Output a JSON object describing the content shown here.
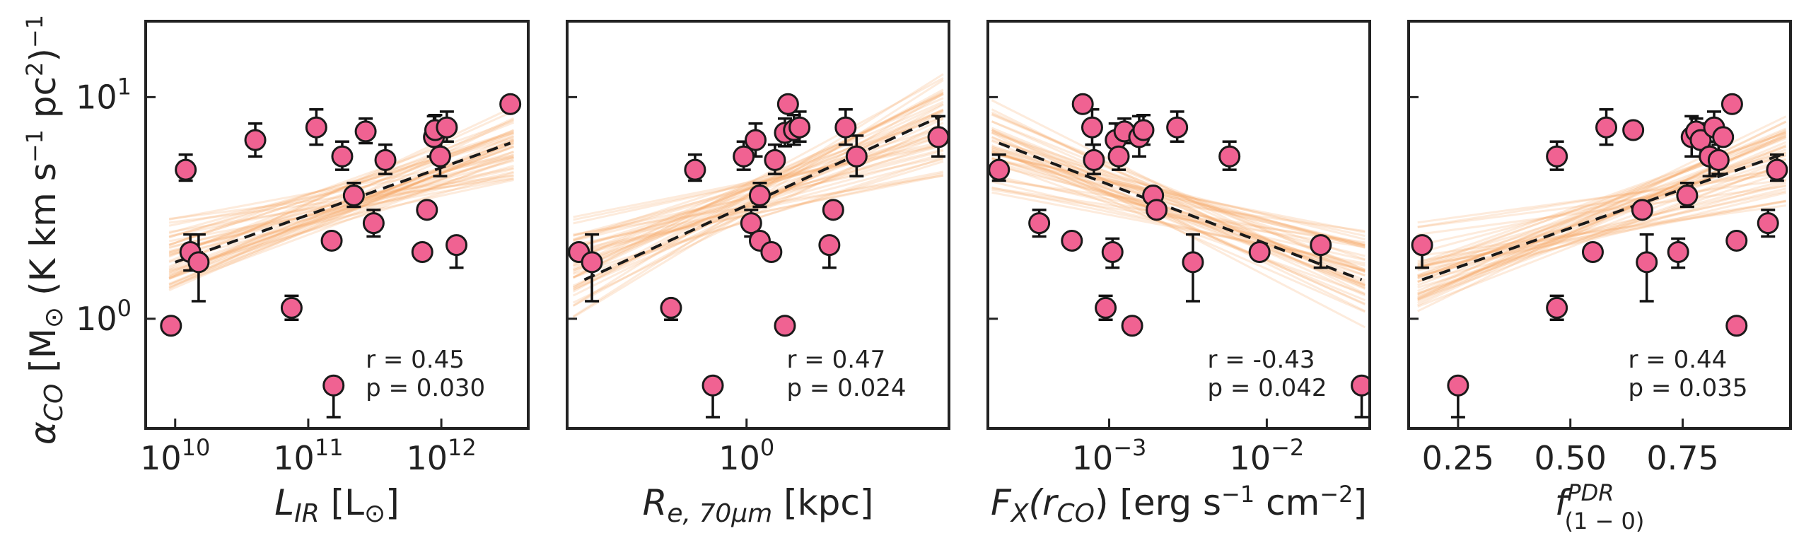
{
  "figure": {
    "ylabel": "α_CO [M⊙ (K km s⁻¹ pc²)⁻¹]",
    "ylabel_parts": {
      "main": "α",
      "sub": "CO",
      "rest": " [M",
      "sun": "⊙",
      "unit1": " (K km s",
      "e1": "−1",
      "unit2": " pc",
      "e2": "2",
      "unit3": ")",
      "e3": "−1"
    },
    "colors": {
      "points": "#f06292",
      "point_edge": "#1a1a1a",
      "fit_line": "#1a1a1a",
      "samples": "#f4a460",
      "errorbar": "#111111"
    }
  },
  "chart_data": [
    {
      "type": "scatter",
      "title": "",
      "xlabel": "L_IR [L⊙]",
      "xlabel_parts": {
        "main": "L",
        "sub": "IR",
        "rest": " [L",
        "sun": "⊙",
        "close": "]"
      },
      "ylabel": "α_CO [M⊙ (K km s⁻¹ pc²)⁻¹]",
      "xscale": "log",
      "yscale": "log",
      "xlim": [
        6000000000.0,
        4500000000000.0
      ],
      "ylim": [
        0.32,
        22
      ],
      "xticks": [
        {
          "value": 10000000000.0,
          "label": "10",
          "exp": "10"
        },
        {
          "value": 100000000000.0,
          "label": "10",
          "exp": "11"
        },
        {
          "value": 1000000000000.0,
          "label": "10",
          "exp": "12"
        }
      ],
      "yticks": [
        {
          "value": 1,
          "label": "10",
          "exp": "0"
        },
        {
          "value": 10,
          "label": "10",
          "exp": "1"
        }
      ],
      "annotation": {
        "r": "r = 0.45",
        "p": "p = 0.030",
        "position": "bottom-right"
      },
      "fit": {
        "x": [
          10000000000.0,
          3300000000000.0
        ],
        "y": [
          1.8,
          6.2
        ]
      },
      "samples": {
        "x": [
          9000000000.0,
          3500000000000.0
        ],
        "y_center_start": 1.8,
        "y_center_end": 6.2,
        "count": 45
      },
      "points": [
        {
          "x": 9300000000.0,
          "y": 0.93,
          "err_up": 0,
          "err_down": 0
        },
        {
          "x": 12000000000.0,
          "y": 4.7,
          "err_up": 0.8,
          "err_down": 0.5
        },
        {
          "x": 13000000000.0,
          "y": 2.0,
          "err_up": 0.4,
          "err_down": 0.35
        },
        {
          "x": 15000000000.0,
          "y": 1.8,
          "err_up": 0.6,
          "err_down": 0.6
        },
        {
          "x": 40000000000.0,
          "y": 6.4,
          "err_up": 1.2,
          "err_down": 1.0
        },
        {
          "x": 75000000000.0,
          "y": 1.12,
          "err_up": 0.15,
          "err_down": 0.13
        },
        {
          "x": 115000000000.0,
          "y": 7.3,
          "err_up": 1.5,
          "err_down": 1.2
        },
        {
          "x": 150000000000.0,
          "y": 2.25,
          "err_up": 0,
          "err_down": 0
        },
        {
          "x": 155000000000.0,
          "y": 0.5,
          "err_up": 0,
          "err_down": 0.14
        },
        {
          "x": 180000000000.0,
          "y": 5.4,
          "err_up": 0.9,
          "err_down": 0.7
        },
        {
          "x": 220000000000.0,
          "y": 3.6,
          "err_up": 0.5,
          "err_down": 0.4
        },
        {
          "x": 270000000000.0,
          "y": 7.0,
          "err_up": 1.0,
          "err_down": 0.8
        },
        {
          "x": 310000000000.0,
          "y": 2.7,
          "err_up": 0.4,
          "err_down": 0.35
        },
        {
          "x": 380000000000.0,
          "y": 5.2,
          "err_up": 0.9,
          "err_down": 0.7
        },
        {
          "x": 720000000000.0,
          "y": 2.0,
          "err_up": 0,
          "err_down": 0
        },
        {
          "x": 780000000000.0,
          "y": 3.1,
          "err_up": 0,
          "err_down": 0
        },
        {
          "x": 880000000000.0,
          "y": 6.6,
          "err_up": 1.6,
          "err_down": 1.2
        },
        {
          "x": 900000000000.0,
          "y": 7.1,
          "err_up": 1.2,
          "err_down": 1.0
        },
        {
          "x": 980000000000.0,
          "y": 5.4,
          "err_up": 1.3,
          "err_down": 1.0
        },
        {
          "x": 1100000000000.0,
          "y": 7.3,
          "err_up": 1.3,
          "err_down": 1.0
        },
        {
          "x": 1300000000000.0,
          "y": 2.15,
          "err_up": 0,
          "err_down": 0.45
        },
        {
          "x": 3300000000000.0,
          "y": 9.3,
          "err_up": 0,
          "err_down": 0
        }
      ]
    },
    {
      "type": "scatter",
      "title": "",
      "xlabel": "R_e,70μm [kpc]",
      "xlabel_parts": {
        "main": "R",
        "sub": "e, 70μm",
        "rest": " [kpc]"
      },
      "xscale": "log",
      "yscale": "log",
      "xlim": [
        0.15,
        8.5
      ],
      "ylim": [
        0.32,
        22
      ],
      "xticks": [
        {
          "value": 1,
          "label": "10",
          "exp": "0"
        }
      ],
      "yticks": [
        {
          "value": 1,
          "label": "",
          "exp": ""
        },
        {
          "value": 10,
          "label": "",
          "exp": ""
        }
      ],
      "annotation": {
        "r": "r = 0.47",
        "p": "p = 0.024",
        "position": "bottom-right"
      },
      "fit": {
        "x": [
          0.18,
          7.8
        ],
        "y": [
          1.5,
          8.2
        ]
      },
      "samples": {
        "x": [
          0.16,
          8.0
        ],
        "y_center_start": 1.5,
        "y_center_end": 8.2,
        "count": 45
      },
      "points": [
        {
          "x": 0.17,
          "y": 2.0,
          "err_up": 0,
          "err_down": 0
        },
        {
          "x": 0.195,
          "y": 1.8,
          "err_up": 0.6,
          "err_down": 0.6
        },
        {
          "x": 0.45,
          "y": 1.12,
          "err_up": 0,
          "err_down": 0.13
        },
        {
          "x": 0.58,
          "y": 4.7,
          "err_up": 0.8,
          "err_down": 0.5
        },
        {
          "x": 0.7,
          "y": 0.5,
          "err_up": 0,
          "err_down": 0.14
        },
        {
          "x": 0.97,
          "y": 5.4,
          "err_up": 0.9,
          "err_down": 0.7
        },
        {
          "x": 1.05,
          "y": 2.7,
          "err_up": 0.4,
          "err_down": 0.35
        },
        {
          "x": 1.1,
          "y": 6.4,
          "err_up": 1.2,
          "err_down": 1.0
        },
        {
          "x": 1.15,
          "y": 3.6,
          "err_up": 0.5,
          "err_down": 0.4
        },
        {
          "x": 1.15,
          "y": 2.25,
          "err_up": 0,
          "err_down": 0
        },
        {
          "x": 1.3,
          "y": 2.0,
          "err_up": 0,
          "err_down": 0
        },
        {
          "x": 1.35,
          "y": 5.2,
          "err_up": 0.9,
          "err_down": 0.7
        },
        {
          "x": 1.5,
          "y": 0.93,
          "err_up": 0,
          "err_down": 0
        },
        {
          "x": 1.5,
          "y": 6.9,
          "err_up": 1.1,
          "err_down": 0.9
        },
        {
          "x": 1.55,
          "y": 9.3,
          "err_up": 0,
          "err_down": 0
        },
        {
          "x": 1.65,
          "y": 7.1,
          "err_up": 1.2,
          "err_down": 1.0
        },
        {
          "x": 1.75,
          "y": 7.3,
          "err_up": 1.3,
          "err_down": 1.0
        },
        {
          "x": 2.4,
          "y": 2.15,
          "err_up": 0,
          "err_down": 0.45
        },
        {
          "x": 2.5,
          "y": 3.1,
          "err_up": 0,
          "err_down": 0
        },
        {
          "x": 2.85,
          "y": 7.3,
          "err_up": 1.5,
          "err_down": 1.2
        },
        {
          "x": 3.2,
          "y": 5.4,
          "err_up": 1.3,
          "err_down": 1.0
        },
        {
          "x": 7.6,
          "y": 6.6,
          "err_up": 1.6,
          "err_down": 1.2
        }
      ]
    },
    {
      "type": "scatter",
      "title": "",
      "xlabel": "F_X(r_CO) [erg s⁻¹ cm⁻²]",
      "xlabel_parts": {
        "main": "F",
        "sub": "X",
        "mid": "(r",
        "sub2": "CO",
        "rest": ") [erg s",
        "e1": "−1",
        "rest2": " cm",
        "e2": "−2",
        "close": "]"
      },
      "xscale": "log",
      "yscale": "log",
      "xlim": [
        0.00017,
        0.045
      ],
      "ylim": [
        0.32,
        22
      ],
      "xticks": [
        {
          "value": 0.001,
          "label": "10",
          "exp": "−3"
        },
        {
          "value": 0.01,
          "label": "10",
          "exp": "−2"
        }
      ],
      "yticks": [
        {
          "value": 1,
          "label": "",
          "exp": ""
        },
        {
          "value": 10,
          "label": "",
          "exp": ""
        }
      ],
      "annotation": {
        "r": "r = -0.43",
        "p": "p = 0.042",
        "position": "bottom-right"
      },
      "fit": {
        "x": [
          0.0002,
          0.04
        ],
        "y": [
          6.2,
          1.5
        ]
      },
      "samples": {
        "x": [
          0.00018,
          0.042
        ],
        "y_center_start": 6.2,
        "y_center_end": 1.5,
        "count": 45
      },
      "points": [
        {
          "x": 0.0002,
          "y": 4.7,
          "err_up": 0.8,
          "err_down": 0.5
        },
        {
          "x": 0.00036,
          "y": 2.7,
          "err_up": 0.4,
          "err_down": 0.35
        },
        {
          "x": 0.00058,
          "y": 2.25,
          "err_up": 0,
          "err_down": 0
        },
        {
          "x": 0.00068,
          "y": 9.3,
          "err_up": 0,
          "err_down": 0
        },
        {
          "x": 0.00078,
          "y": 7.3,
          "err_up": 1.5,
          "err_down": 1.2
        },
        {
          "x": 0.0008,
          "y": 5.2,
          "err_up": 0.9,
          "err_down": 0.7
        },
        {
          "x": 0.00095,
          "y": 1.12,
          "err_up": 0.15,
          "err_down": 0.13
        },
        {
          "x": 0.00105,
          "y": 2.0,
          "err_up": 0.3,
          "err_down": 0.3
        },
        {
          "x": 0.0011,
          "y": 6.4,
          "err_up": 1.2,
          "err_down": 1.0
        },
        {
          "x": 0.00115,
          "y": 5.4,
          "err_up": 0.9,
          "err_down": 0.7
        },
        {
          "x": 0.00125,
          "y": 7.0,
          "err_up": 1.0,
          "err_down": 0.8
        },
        {
          "x": 0.0014,
          "y": 0.93,
          "err_up": 0,
          "err_down": 0
        },
        {
          "x": 0.00155,
          "y": 6.6,
          "err_up": 1.6,
          "err_down": 1.2
        },
        {
          "x": 0.00165,
          "y": 7.1,
          "err_up": 1.2,
          "err_down": 1.0
        },
        {
          "x": 0.0019,
          "y": 3.6,
          "err_up": 0,
          "err_down": 0
        },
        {
          "x": 0.002,
          "y": 3.1,
          "err_up": 0,
          "err_down": 0
        },
        {
          "x": 0.0027,
          "y": 7.3,
          "err_up": 1.3,
          "err_down": 1.0
        },
        {
          "x": 0.0034,
          "y": 1.8,
          "err_up": 0.6,
          "err_down": 0.6
        },
        {
          "x": 0.0058,
          "y": 5.4,
          "err_up": 0.9,
          "err_down": 0.7
        },
        {
          "x": 0.009,
          "y": 2.0,
          "err_up": 0,
          "err_down": 0
        },
        {
          "x": 0.022,
          "y": 2.15,
          "err_up": 0,
          "err_down": 0.45
        },
        {
          "x": 0.04,
          "y": 0.5,
          "err_up": 0,
          "err_down": 0.14
        }
      ]
    },
    {
      "type": "scatter",
      "title": "",
      "xlabel": "f^PDR_(1−0)",
      "xlabel_parts": {
        "main": "f",
        "sup": "PDR",
        "sub": "(1 − 0)"
      },
      "xscale": "linear",
      "yscale": "log",
      "xlim": [
        0.14,
        0.99
      ],
      "ylim": [
        0.32,
        22
      ],
      "xticks": [
        {
          "value": 0.25,
          "label": "0.25",
          "exp": ""
        },
        {
          "value": 0.5,
          "label": "0.50",
          "exp": ""
        },
        {
          "value": 0.75,
          "label": "0.75",
          "exp": ""
        }
      ],
      "yticks": [
        {
          "value": 1,
          "label": "",
          "exp": ""
        },
        {
          "value": 10,
          "label": "",
          "exp": ""
        }
      ],
      "annotation": {
        "r": "r = 0.44",
        "p": "p = 0.035",
        "position": "bottom-right"
      },
      "fit": {
        "x": [
          0.17,
          0.97
        ],
        "y": [
          1.5,
          5.5
        ]
      },
      "samples": {
        "x": [
          0.16,
          0.98
        ],
        "y_center_start": 1.5,
        "y_center_end": 5.5,
        "count": 45
      },
      "points": [
        {
          "x": 0.17,
          "y": 2.15,
          "err_up": 0,
          "err_down": 0.45
        },
        {
          "x": 0.25,
          "y": 0.5,
          "err_up": 0,
          "err_down": 0.14
        },
        {
          "x": 0.47,
          "y": 5.4,
          "err_up": 0.9,
          "err_down": 0.7
        },
        {
          "x": 0.47,
          "y": 1.12,
          "err_up": 0.15,
          "err_down": 0.13
        },
        {
          "x": 0.55,
          "y": 2.0,
          "err_up": 0,
          "err_down": 0
        },
        {
          "x": 0.58,
          "y": 7.3,
          "err_up": 1.5,
          "err_down": 1.2
        },
        {
          "x": 0.64,
          "y": 7.1,
          "err_up": 0,
          "err_down": 0
        },
        {
          "x": 0.66,
          "y": 3.1,
          "err_up": 0,
          "err_down": 0
        },
        {
          "x": 0.67,
          "y": 1.8,
          "err_up": 0.6,
          "err_down": 0.6
        },
        {
          "x": 0.74,
          "y": 2.0,
          "err_up": 0.3,
          "err_down": 0.3
        },
        {
          "x": 0.76,
          "y": 3.6,
          "err_up": 0.5,
          "err_down": 0.4
        },
        {
          "x": 0.77,
          "y": 6.6,
          "err_up": 1.6,
          "err_down": 1.2
        },
        {
          "x": 0.78,
          "y": 7.0,
          "err_up": 1.0,
          "err_down": 0.8
        },
        {
          "x": 0.79,
          "y": 6.4,
          "err_up": 1.2,
          "err_down": 1.0
        },
        {
          "x": 0.81,
          "y": 5.4,
          "err_up": 1.3,
          "err_down": 1.0
        },
        {
          "x": 0.82,
          "y": 7.3,
          "err_up": 1.3,
          "err_down": 1.0
        },
        {
          "x": 0.83,
          "y": 5.2,
          "err_up": 0.9,
          "err_down": 0.7
        },
        {
          "x": 0.84,
          "y": 6.6,
          "err_up": 0,
          "err_down": 0
        },
        {
          "x": 0.86,
          "y": 9.3,
          "err_up": 0,
          "err_down": 0
        },
        {
          "x": 0.87,
          "y": 2.25,
          "err_up": 0,
          "err_down": 0
        },
        {
          "x": 0.87,
          "y": 0.93,
          "err_up": 0,
          "err_down": 0
        },
        {
          "x": 0.94,
          "y": 2.7,
          "err_up": 0.4,
          "err_down": 0.35
        },
        {
          "x": 0.96,
          "y": 4.7,
          "err_up": 0.8,
          "err_down": 0.5
        }
      ]
    }
  ]
}
